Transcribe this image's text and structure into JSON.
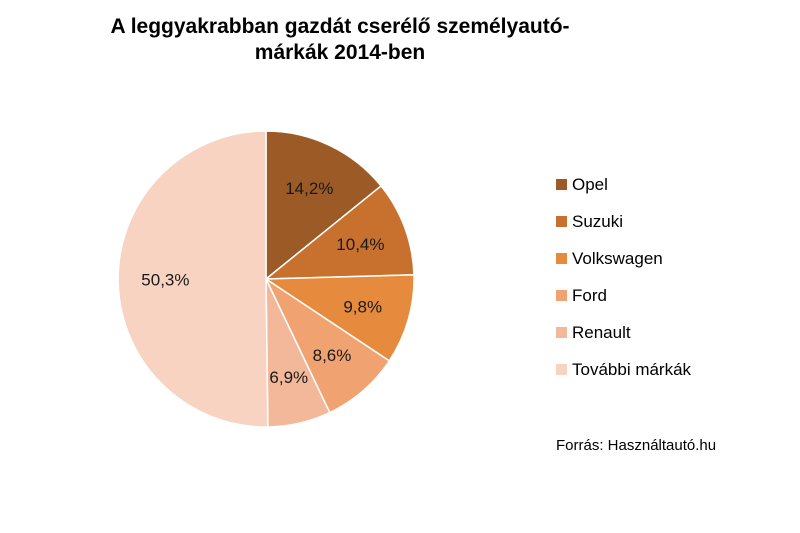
{
  "chart_data": {
    "type": "pie",
    "title": "A leggyakrabban gazdát cserélő személyautó-márkák 2014-ben",
    "title_lines": [
      "A leggyakrabban gazdát cserélő személyautó-",
      "márkák 2014-ben"
    ],
    "slices": [
      {
        "name": "Opel",
        "value": 14.2,
        "label": "14,2%",
        "color": "#9c5a27"
      },
      {
        "name": "Suzuki",
        "value": 10.4,
        "label": "10,4%",
        "color": "#c8712f"
      },
      {
        "name": "Volkswagen",
        "value": 9.8,
        "label": "9,8%",
        "color": "#e68a3d"
      },
      {
        "name": "Ford",
        "value": 8.6,
        "label": "8,6%",
        "color": "#f0a370"
      },
      {
        "name": "Renault",
        "value": 6.9,
        "label": "6,9%",
        "color": "#f3b89a"
      },
      {
        "name": "További márkák",
        "value": 50.3,
        "label": "50,3%",
        "color": "#f8d3c2"
      }
    ],
    "legend_position": "right",
    "start_angle": "12 o'clock, clockwise"
  },
  "source": "Forrás: Használtautó.hu"
}
